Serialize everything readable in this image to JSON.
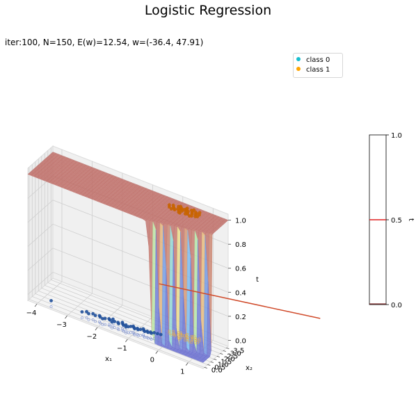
{
  "title": "Logistic Regression",
  "subtitle": "iter:100, N=150, E(w)=12.54, w=(-36.4, 47.91)",
  "legend": {
    "items": [
      {
        "label": "class 0",
        "color": "#17becf"
      },
      {
        "label": "class 1",
        "color": "#ffa500"
      }
    ]
  },
  "colors": {
    "surface_low": "#6a6fd0",
    "surface_high": "#c0706a",
    "class0_points": "#1f4f9a",
    "class1_points": "#c86400",
    "boundary_line": "#d04a2a",
    "colorbar_line": "#e02020"
  },
  "chart_data": {
    "type": "surface3d",
    "title": "Logistic Regression",
    "subtitle": "iter:100, N=150, E(w)=12.54, w=(-36.4, 47.91)",
    "xlabel": "x₁",
    "ylabel": "x₂",
    "zlabel": "t",
    "xlim": [
      -4.3,
      1.5
    ],
    "ylim": [
      -0.2,
      3.8
    ],
    "zlim": [
      -0.05,
      1.05
    ],
    "x_ticks": [
      "−4",
      "−3",
      "−2",
      "−1",
      "0",
      "1"
    ],
    "y_ticks": [
      "0.0",
      "0.5",
      "1.0",
      "1.5",
      "2.0",
      "2.5",
      "3.0",
      "3.5"
    ],
    "z_ticks": [
      "0.0",
      "0.2",
      "0.4",
      "0.6",
      "0.8",
      "1.0"
    ],
    "grid": true,
    "legend_position": "upper-right",
    "weights": [
      -36.4,
      47.91
    ],
    "N": 150,
    "iterations": 100,
    "error": 12.54,
    "colorbar": {
      "label": "t",
      "ticks": [
        "0.0",
        "0.5",
        "1.0"
      ],
      "range": [
        0,
        1
      ]
    },
    "series": [
      {
        "name": "class 0",
        "points": [
          [
            -2.4,
            0.35
          ],
          [
            -2.2,
            0.45
          ],
          [
            -2.05,
            0.5
          ],
          [
            -1.9,
            0.55
          ],
          [
            -1.75,
            0.6
          ],
          [
            -1.6,
            0.62
          ],
          [
            -1.5,
            0.68
          ],
          [
            -1.35,
            0.72
          ],
          [
            -1.25,
            0.75
          ],
          [
            -1.1,
            0.8
          ],
          [
            -1.0,
            0.82
          ],
          [
            -0.9,
            0.88
          ],
          [
            -0.8,
            0.9
          ],
          [
            -0.7,
            0.95
          ],
          [
            -0.6,
            1.0
          ],
          [
            -0.5,
            1.05
          ],
          [
            -2.3,
            0.55
          ],
          [
            -2.1,
            0.62
          ],
          [
            -1.95,
            0.4
          ],
          [
            -1.8,
            0.7
          ],
          [
            -1.65,
            0.45
          ],
          [
            -1.45,
            0.55
          ],
          [
            -1.3,
            0.6
          ],
          [
            -1.15,
            0.65
          ],
          [
            -1.05,
            0.95
          ],
          [
            -0.95,
            0.7
          ],
          [
            -0.85,
            0.75
          ],
          [
            -0.75,
            1.1
          ],
          [
            -0.65,
            0.85
          ],
          [
            -0.55,
            0.9
          ],
          [
            -0.45,
            0.95
          ],
          [
            -0.4,
            1.15
          ],
          [
            -2.6,
            0.25
          ],
          [
            -1.7,
            0.85
          ],
          [
            -1.2,
            0.5
          ],
          [
            -0.3,
            1.2
          ],
          [
            -3.6,
            0.15
          ],
          [
            -2.5,
            0.5
          ],
          [
            -1.4,
            0.9
          ],
          [
            -0.2,
            1.25
          ]
        ],
        "z": 0
      },
      {
        "name": "class 1",
        "points": [
          [
            -0.2,
            2.6
          ],
          [
            -0.1,
            2.8
          ],
          [
            0.0,
            2.5
          ],
          [
            0.1,
            2.9
          ],
          [
            0.2,
            2.7
          ],
          [
            0.3,
            3.0
          ],
          [
            0.4,
            2.6
          ],
          [
            0.5,
            2.85
          ],
          [
            0.6,
            3.1
          ],
          [
            0.7,
            2.75
          ],
          [
            -0.15,
            3.0
          ],
          [
            0.05,
            3.2
          ],
          [
            0.15,
            2.4
          ],
          [
            0.25,
            3.3
          ],
          [
            0.35,
            2.95
          ],
          [
            0.45,
            3.15
          ],
          [
            0.55,
            2.55
          ],
          [
            0.65,
            3.35
          ],
          [
            -0.05,
            2.65
          ],
          [
            0.1,
            3.05
          ],
          [
            0.2,
            2.35
          ],
          [
            0.3,
            2.8
          ],
          [
            0.4,
            3.25
          ],
          [
            0.5,
            2.45
          ],
          [
            0.6,
            2.9
          ],
          [
            0.0,
            3.1
          ],
          [
            -0.25,
            2.85
          ],
          [
            0.7,
            3.05
          ],
          [
            0.15,
            2.95
          ],
          [
            0.35,
            2.5
          ],
          [
            0.45,
            3.4
          ],
          [
            0.55,
            3.2
          ],
          [
            -0.1,
            2.45
          ],
          [
            0.25,
            3.15
          ],
          [
            0.05,
            2.75
          ],
          [
            0.65,
            2.65
          ],
          [
            0.38,
            2.7
          ],
          [
            0.22,
            3.0
          ],
          [
            0.48,
            2.95
          ],
          [
            0.12,
            2.6
          ]
        ],
        "z": 1
      }
    ]
  }
}
